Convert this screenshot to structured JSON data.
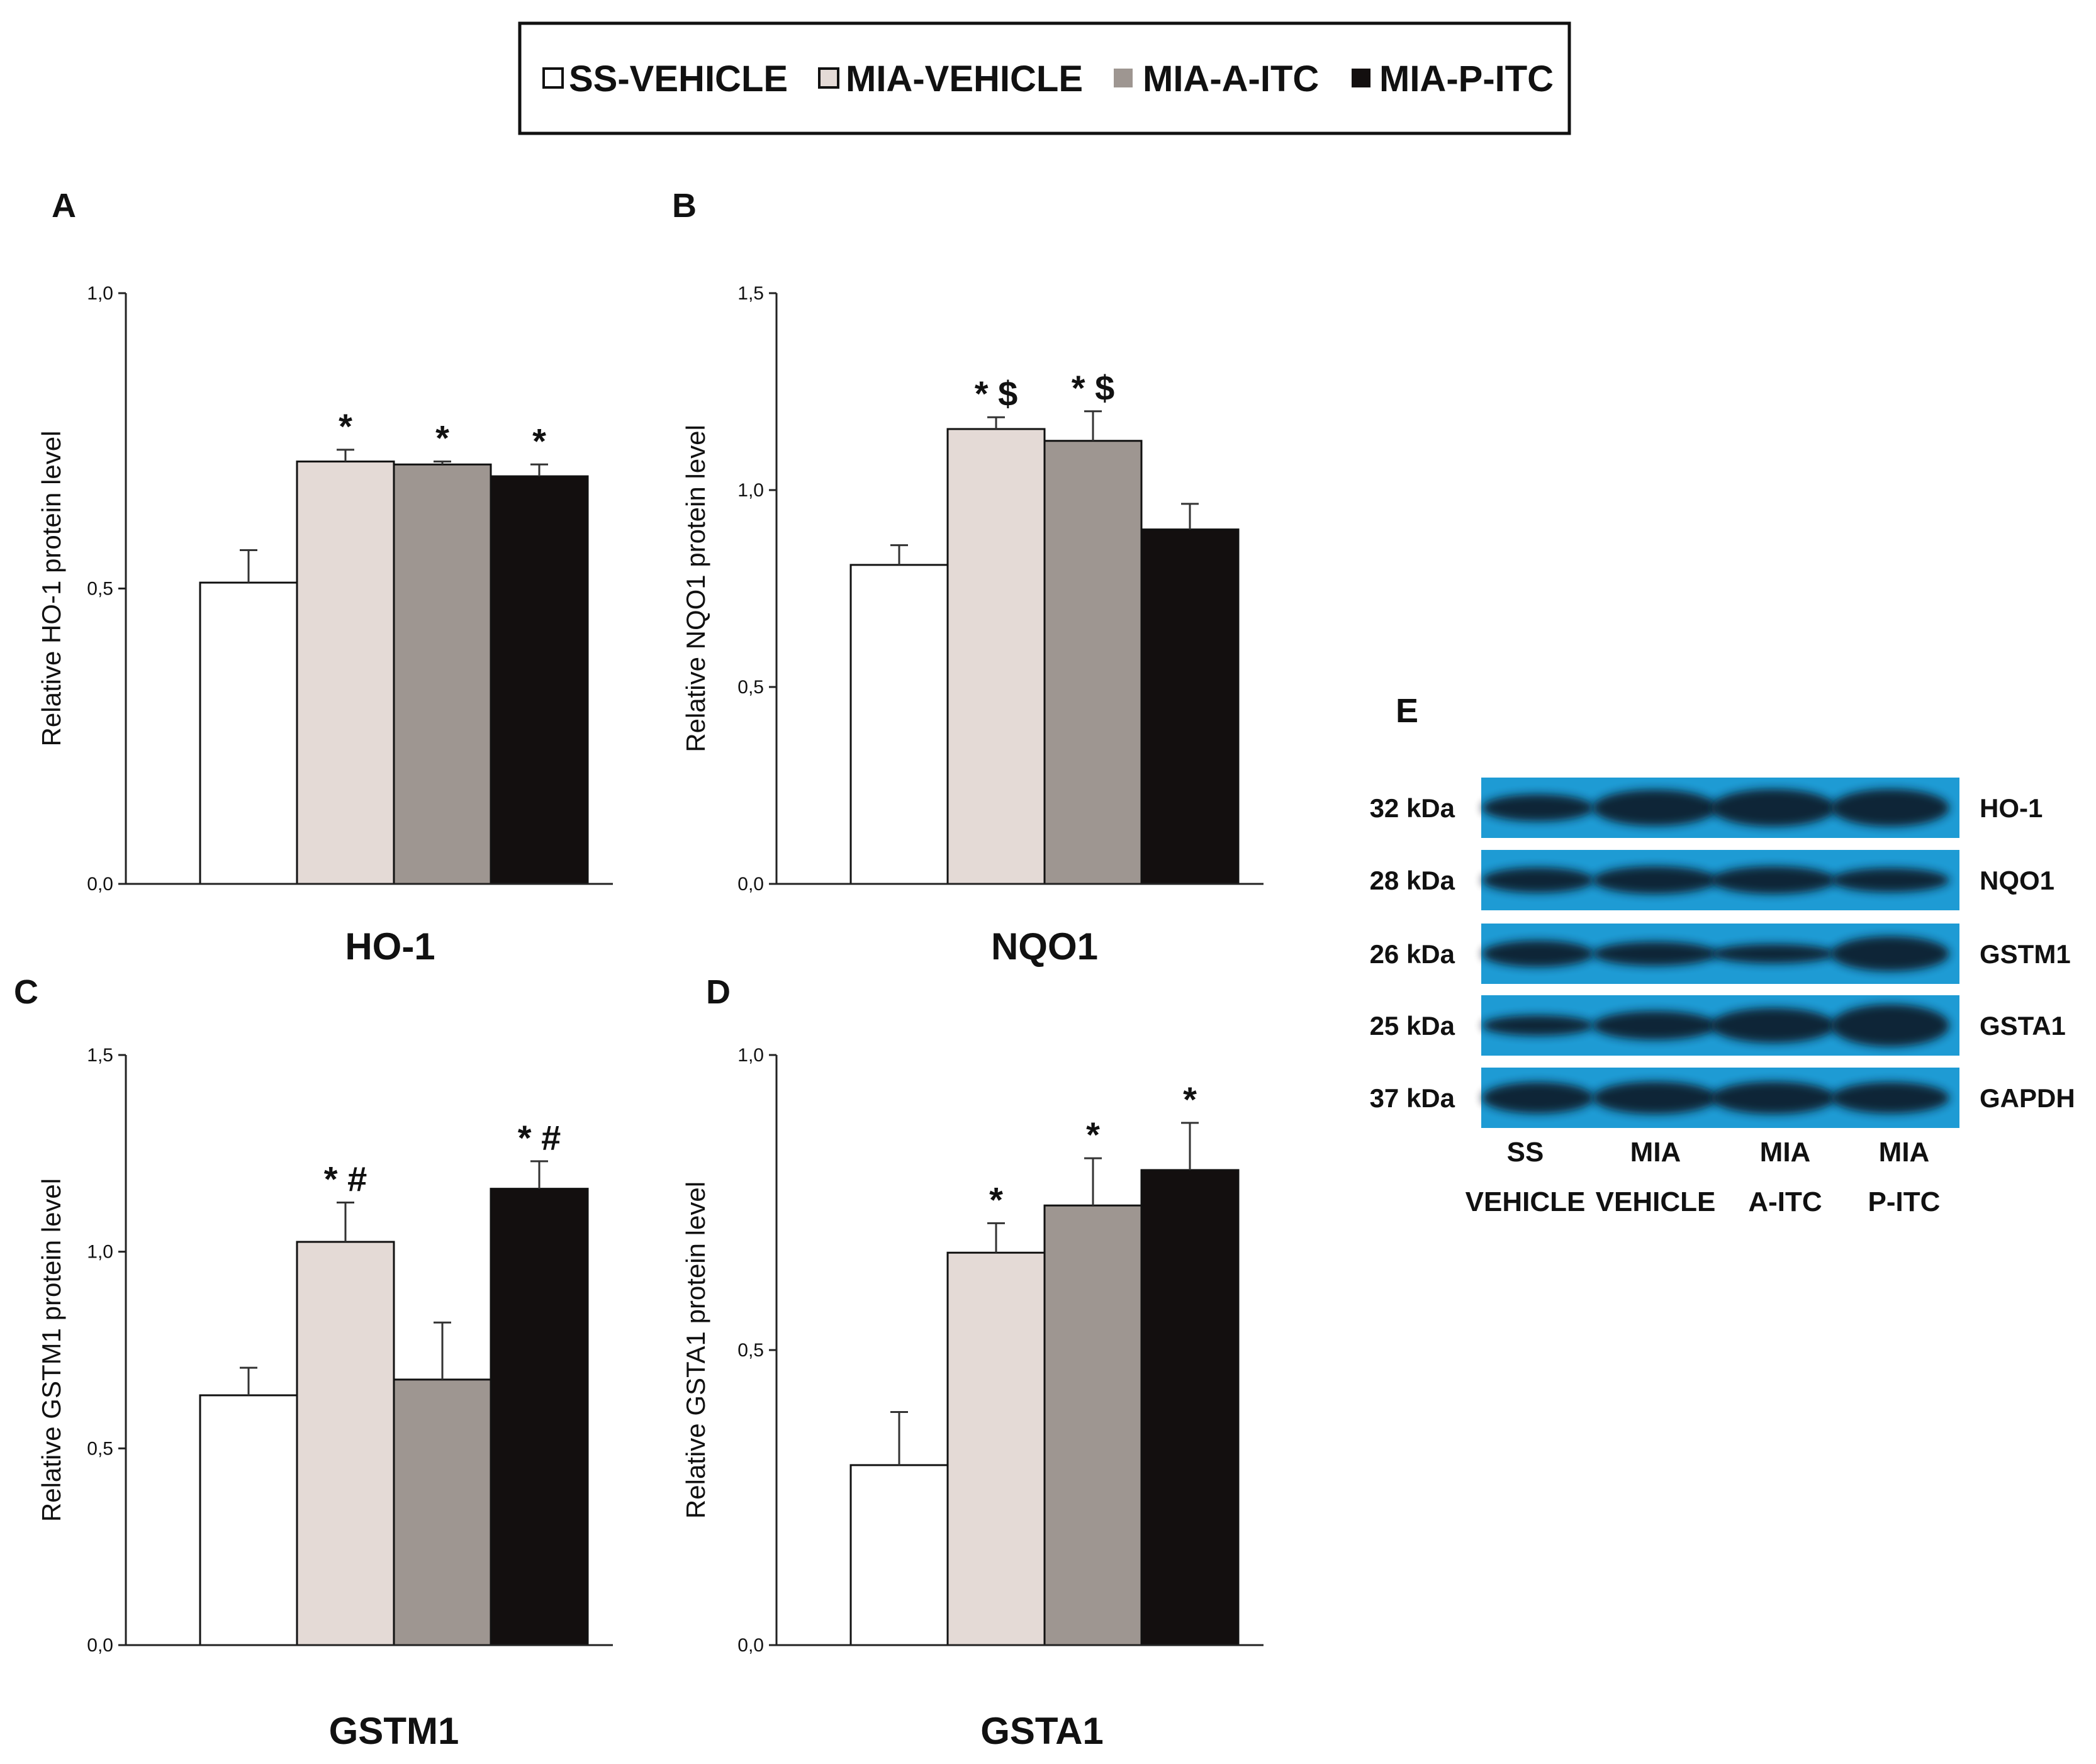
{
  "legend": {
    "entries": [
      {
        "label": "SS-VEHICLE",
        "color": "#ffffff"
      },
      {
        "label": "MIA-VEHICLE",
        "color": "#e4dad6"
      },
      {
        "label": "MIA-A-ITC",
        "color": "#9e9691"
      },
      {
        "label": "MIA-P-ITC",
        "color": "#130f0f"
      }
    ]
  },
  "chart_data": [
    {
      "panel": "A",
      "type": "bar",
      "title": "HO-1",
      "ylabel": "Relative HO-1  protein level",
      "ylim": [
        0,
        1.0
      ],
      "yticks": [
        {
          "value": 0,
          "label": "0,0"
        },
        {
          "value": 0.5,
          "label": "0,5"
        },
        {
          "value": 1.0,
          "label": "1,0"
        }
      ],
      "categories": [
        "SS-VEHICLE",
        "MIA-VEHICLE",
        "MIA-A-ITC",
        "MIA-P-ITC"
      ],
      "values": [
        0.51,
        0.715,
        0.71,
        0.69
      ],
      "errors": [
        0.055,
        0.02,
        0.005,
        0.02
      ],
      "annotations": [
        "",
        "*",
        "*",
        "*"
      ]
    },
    {
      "panel": "B",
      "type": "bar",
      "title": "NQO1",
      "ylabel": "Relative NQO1  protein level",
      "ylim": [
        0,
        1.5
      ],
      "yticks": [
        {
          "value": 0,
          "label": "0,0"
        },
        {
          "value": 0.5,
          "label": "0,5"
        },
        {
          "value": 1.0,
          "label": "1,0"
        },
        {
          "value": 1.5,
          "label": "1,5"
        }
      ],
      "categories": [
        "SS-VEHICLE",
        "MIA-VEHICLE",
        "MIA-A-ITC",
        "MIA-P-ITC"
      ],
      "values": [
        0.81,
        1.155,
        1.125,
        0.9
      ],
      "errors": [
        0.05,
        0.03,
        0.075,
        0.065
      ],
      "annotations": [
        "",
        "* $",
        "* $",
        ""
      ]
    },
    {
      "panel": "C",
      "type": "bar",
      "title": "GSTM1",
      "ylabel": "Relative GSTM1 protein level",
      "ylim": [
        0,
        1.5
      ],
      "yticks": [
        {
          "value": 0,
          "label": "0,0"
        },
        {
          "value": 0.5,
          "label": "0,5"
        },
        {
          "value": 1.0,
          "label": "1,0"
        },
        {
          "value": 1.5,
          "label": "1,5"
        }
      ],
      "categories": [
        "SS-VEHICLE",
        "MIA-VEHICLE",
        "MIA-A-ITC",
        "MIA-P-ITC"
      ],
      "values": [
        0.635,
        1.025,
        0.675,
        1.16
      ],
      "errors": [
        0.07,
        0.1,
        0.145,
        0.07
      ],
      "annotations": [
        "",
        "* #",
        "",
        "* #"
      ]
    },
    {
      "panel": "D",
      "type": "bar",
      "title": "GSTA1",
      "ylabel": "Relative GSTA1 protein level",
      "ylim": [
        0,
        1.0
      ],
      "yticks": [
        {
          "value": 0,
          "label": "0,0"
        },
        {
          "value": 0.5,
          "label": "0,5"
        },
        {
          "value": 1.0,
          "label": "1,0"
        }
      ],
      "categories": [
        "SS-VEHICLE",
        "MIA-VEHICLE",
        "MIA-A-ITC",
        "MIA-P-ITC"
      ],
      "values": [
        0.305,
        0.665,
        0.745,
        0.805
      ],
      "errors": [
        0.09,
        0.05,
        0.08,
        0.08
      ],
      "annotations": [
        "",
        "*",
        "*",
        "*"
      ]
    }
  ],
  "blot": {
    "panel": "E",
    "rows": [
      {
        "kda": "32 kDa",
        "protein": "HO-1"
      },
      {
        "kda": "28 kDa",
        "protein": "NQO1"
      },
      {
        "kda": "26 kDa",
        "protein": "GSTM1"
      },
      {
        "kda": "25 kDa",
        "protein": "GSTA1"
      },
      {
        "kda": "37 kDa",
        "protein": "GAPDH"
      }
    ],
    "lanes": [
      {
        "line1": "SS",
        "line2": "VEHICLE"
      },
      {
        "line1": "MIA",
        "line2": "VEHICLE"
      },
      {
        "line1": "MIA",
        "line2": "A-ITC"
      },
      {
        "line1": "MIA",
        "line2": "P-ITC"
      }
    ],
    "background_color": "#1e9bd4",
    "band_color": "#0e1a2a"
  }
}
